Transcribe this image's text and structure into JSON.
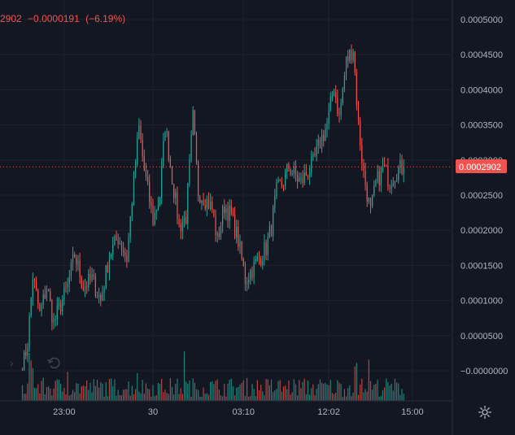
{
  "header": {
    "price_fragment": "2902",
    "change": "−0.0000191",
    "change_pct": "(−6.19%)"
  },
  "price_label": "0.0002902",
  "colors": {
    "background": "#131722",
    "grid": "#1e222d",
    "up": "#26a69a",
    "down": "#ef5350",
    "axis_text": "#b2b5be",
    "price_line": "#ef5350"
  },
  "icons": {
    "settings": "gear-icon",
    "undo": "undo-icon",
    "nav": "chevron-right-icon"
  },
  "chart_data": {
    "type": "candlestick",
    "xlabel": "",
    "ylabel": "",
    "ylim": [
      -1e-05,
      0.000525
    ],
    "y_ticks": [
      {
        "value": 0.0005,
        "label": "0.0005000"
      },
      {
        "value": 0.00045,
        "label": "0.0004500"
      },
      {
        "value": 0.0004,
        "label": "0.0004000"
      },
      {
        "value": 0.00035,
        "label": "0.0003500"
      },
      {
        "value": 0.0003,
        "label": "0.0003000"
      },
      {
        "value": 0.00025,
        "label": "0.0002500"
      },
      {
        "value": 0.0002,
        "label": "0.0002000"
      },
      {
        "value": 0.00015,
        "label": "0.0001500"
      },
      {
        "value": 0.0001,
        "label": "0.0001000"
      },
      {
        "value": 5e-05,
        "label": "0.0000500"
      },
      {
        "value": 0.0,
        "label": "−0.0000000"
      }
    ],
    "x_ticks": [
      {
        "index": 24,
        "label": "23:00"
      },
      {
        "index": 75,
        "label": "30"
      },
      {
        "index": 127,
        "label": "03:10"
      },
      {
        "index": 176,
        "label": "12:02"
      },
      {
        "index": 224,
        "label": "15:00"
      }
    ],
    "last_price": 0.0002902,
    "path": [
      [
        0,
        2e-06
      ],
      [
        3,
        4e-05
      ],
      [
        6,
        0.000135
      ],
      [
        10,
        8e-05
      ],
      [
        14,
        0.00012
      ],
      [
        18,
        6.8e-05
      ],
      [
        22,
        9.5e-05
      ],
      [
        26,
        0.00012
      ],
      [
        30,
        0.000165
      ],
      [
        35,
        0.00012
      ],
      [
        40,
        0.00013
      ],
      [
        45,
        0.0001
      ],
      [
        50,
        0.000165
      ],
      [
        55,
        0.00019
      ],
      [
        60,
        0.00016
      ],
      [
        63,
        0.000245
      ],
      [
        67,
        0.000345
      ],
      [
        70,
        0.000285
      ],
      [
        75,
        0.000215
      ],
      [
        79,
        0.00025
      ],
      [
        82,
        0.00035
      ],
      [
        86,
        0.000275
      ],
      [
        90,
        0.000205
      ],
      [
        94,
        0.00022
      ],
      [
        98,
        0.00036
      ],
      [
        101,
        0.000255
      ],
      [
        105,
        0.000245
      ],
      [
        109,
        0.00023
      ],
      [
        112,
        0.000185
      ],
      [
        116,
        0.000235
      ],
      [
        120,
        0.00022
      ],
      [
        124,
        0.000185
      ],
      [
        128,
        0.00013
      ],
      [
        132,
        0.000145
      ],
      [
        136,
        0.00016
      ],
      [
        140,
        0.000175
      ],
      [
        143,
        0.000205
      ],
      [
        146,
        0.000255
      ],
      [
        150,
        0.00027
      ],
      [
        153,
        0.00029
      ],
      [
        156,
        0.00028
      ],
      [
        160,
        0.000268
      ],
      [
        163,
        0.00028
      ],
      [
        167,
        0.000295
      ],
      [
        171,
        0.000325
      ],
      [
        175,
        0.00035
      ],
      [
        179,
        0.000405
      ],
      [
        182,
        0.00036
      ],
      [
        186,
        0.00044
      ],
      [
        190,
        0.00046
      ],
      [
        193,
        0.00035
      ],
      [
        196,
        0.00028
      ],
      [
        200,
        0.000225
      ],
      [
        203,
        0.000265
      ],
      [
        207,
        0.00029
      ],
      [
        211,
        0.00027
      ],
      [
        215,
        0.000285
      ],
      [
        219,
        0.00029
      ]
    ],
    "volume_spikes": [
      {
        "index": 4,
        "value": 0.95,
        "up": true
      },
      {
        "index": 5,
        "value": 0.8,
        "up": false
      },
      {
        "index": 6,
        "value": 0.65,
        "up": true
      },
      {
        "index": 26,
        "value": 0.58,
        "up": false
      },
      {
        "index": 66,
        "value": 0.55,
        "up": true
      },
      {
        "index": 93,
        "value": 0.98,
        "up": true
      },
      {
        "index": 191,
        "value": 0.68,
        "up": false
      },
      {
        "index": 192,
        "value": 0.75,
        "up": true
      },
      {
        "index": 199,
        "value": 0.82,
        "up": false
      }
    ]
  }
}
